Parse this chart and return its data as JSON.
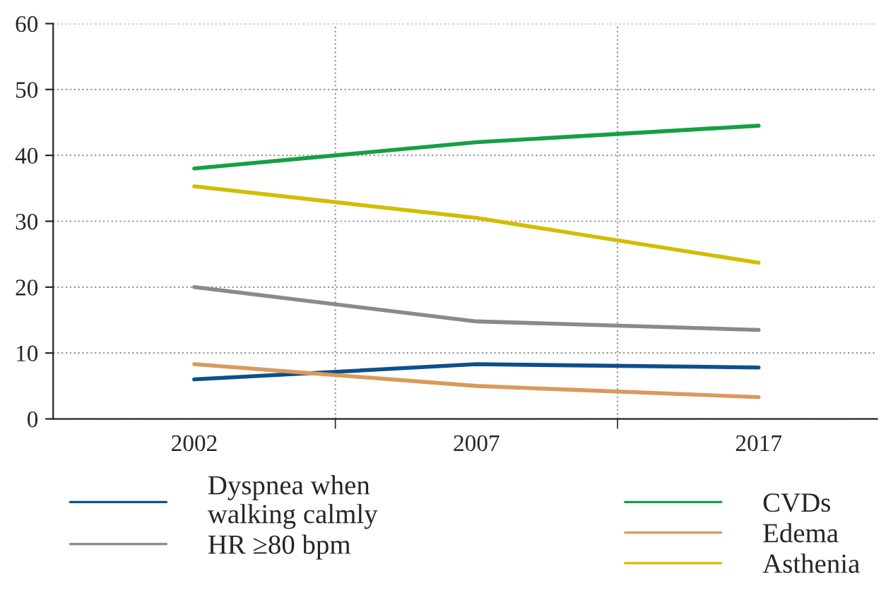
{
  "chart_data": {
    "type": "line",
    "categories": [
      "2002",
      "2007",
      "2017"
    ],
    "series": [
      {
        "name": "Dyspnea when\nwalking calmly",
        "color": "#0e4f8b",
        "values": [
          6.0,
          8.3,
          7.8
        ]
      },
      {
        "name": "HR ≥80 bpm",
        "color": "#8a8a8a",
        "values": [
          20.0,
          14.8,
          13.5
        ]
      },
      {
        "name": "CVDs",
        "color": "#16a043",
        "values": [
          38.0,
          42.0,
          44.5
        ]
      },
      {
        "name": "Edema",
        "color": "#d99a5b",
        "values": [
          8.3,
          5.0,
          3.3
        ]
      },
      {
        "name": "Asthenia",
        "color": "#d2bd00",
        "values": [
          35.3,
          30.5,
          23.7
        ]
      }
    ],
    "ylim": [
      0,
      60
    ],
    "yticks": [
      0,
      10,
      20,
      30,
      40,
      50,
      60
    ],
    "grid": true,
    "legend": "bottom",
    "marker": "none",
    "line_style": "solid"
  }
}
